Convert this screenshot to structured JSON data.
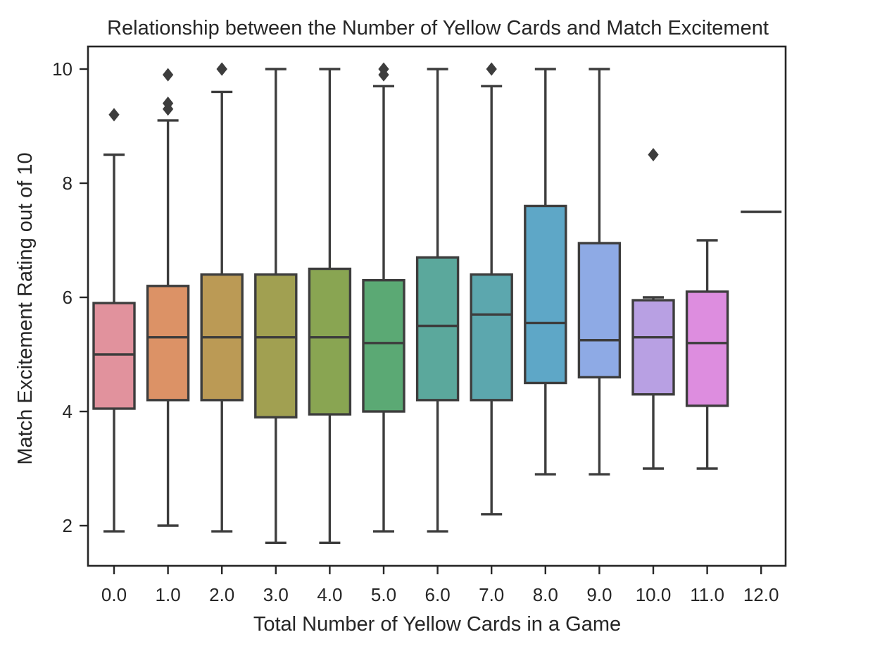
{
  "chart_data": {
    "type": "box",
    "title": "Relationship between the Number of Yellow Cards and Match Excitement",
    "xlabel": "Total Number of Yellow Cards in a Game",
    "ylabel": "Match Excitement Rating out of 10",
    "categories": [
      "0.0",
      "1.0",
      "2.0",
      "3.0",
      "4.0",
      "5.0",
      "6.0",
      "7.0",
      "8.0",
      "9.0",
      "10.0",
      "11.0",
      "12.0"
    ],
    "y_ticks": [
      2,
      4,
      6,
      8,
      10
    ],
    "ylim": [
      1.3,
      10.4
    ],
    "grid": false,
    "boxes": [
      {
        "category": "0.0",
        "whisker_low": 1.9,
        "q1": 4.05,
        "median": 5.0,
        "q3": 5.9,
        "whisker_high": 8.5,
        "outliers": [
          9.2
        ],
        "color": "#e1929d"
      },
      {
        "category": "1.0",
        "whisker_low": 2.0,
        "q1": 4.2,
        "median": 5.3,
        "q3": 6.2,
        "whisker_high": 9.1,
        "outliers": [
          9.3,
          9.4,
          9.9
        ],
        "color": "#dc9266"
      },
      {
        "category": "2.0",
        "whisker_low": 1.9,
        "q1": 4.2,
        "median": 5.3,
        "q3": 6.4,
        "whisker_high": 9.6,
        "outliers": [
          10.0,
          10.0
        ],
        "color": "#bb9a55"
      },
      {
        "category": "3.0",
        "whisker_low": 1.7,
        "q1": 3.9,
        "median": 5.3,
        "q3": 6.4,
        "whisker_high": 10.0,
        "outliers": [],
        "color": "#a1a051"
      },
      {
        "category": "4.0",
        "whisker_low": 1.7,
        "q1": 3.95,
        "median": 5.3,
        "q3": 6.5,
        "whisker_high": 10.0,
        "outliers": [],
        "color": "#89a552"
      },
      {
        "category": "5.0",
        "whisker_low": 1.9,
        "q1": 4.0,
        "median": 5.2,
        "q3": 6.3,
        "whisker_high": 9.7,
        "outliers": [
          9.9,
          10.0
        ],
        "color": "#5ba974"
      },
      {
        "category": "6.0",
        "whisker_low": 1.9,
        "q1": 4.2,
        "median": 5.5,
        "q3": 6.7,
        "whisker_high": 10.0,
        "outliers": [],
        "color": "#5ba89c"
      },
      {
        "category": "7.0",
        "whisker_low": 2.2,
        "q1": 4.2,
        "median": 5.7,
        "q3": 6.4,
        "whisker_high": 9.7,
        "outliers": [
          10.0
        ],
        "color": "#5ca7ae"
      },
      {
        "category": "8.0",
        "whisker_low": 2.9,
        "q1": 4.5,
        "median": 5.55,
        "q3": 7.6,
        "whisker_high": 10.0,
        "outliers": [],
        "color": "#5ea7c7"
      },
      {
        "category": "9.0",
        "whisker_low": 2.9,
        "q1": 4.6,
        "median": 5.25,
        "q3": 6.95,
        "whisker_high": 10.0,
        "outliers": [],
        "color": "#8eaae5"
      },
      {
        "category": "10.0",
        "whisker_low": 3.0,
        "q1": 4.3,
        "median": 5.3,
        "q3": 5.95,
        "whisker_high": 6.0,
        "outliers": [
          8.5
        ],
        "color": "#b8a0e3"
      },
      {
        "category": "11.0",
        "whisker_low": 3.0,
        "q1": 4.1,
        "median": 5.2,
        "q3": 6.1,
        "whisker_high": 7.0,
        "outliers": [],
        "color": "#dd8ddf"
      },
      {
        "category": "12.0",
        "whisker_low": 7.5,
        "q1": 7.5,
        "median": 7.5,
        "q3": 7.5,
        "whisker_high": 7.5,
        "outliers": [],
        "color": "#e58fc6"
      }
    ]
  }
}
